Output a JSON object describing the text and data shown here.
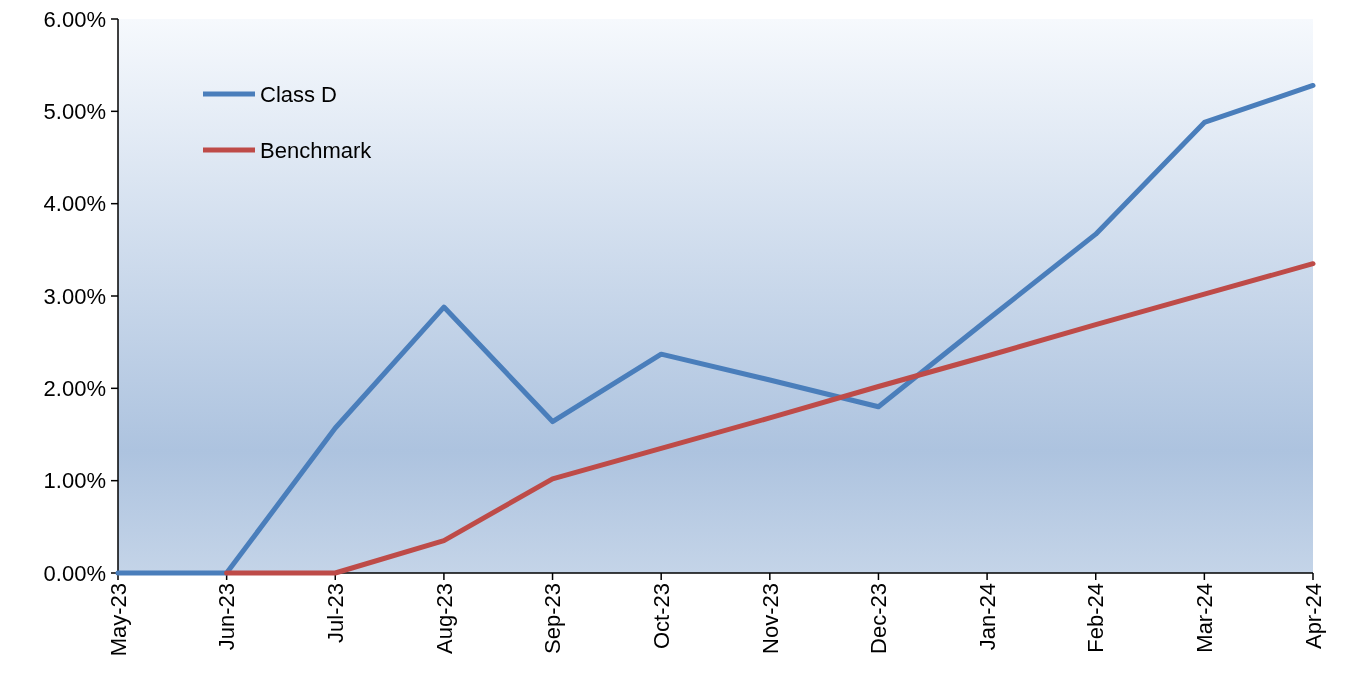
{
  "chart_data": {
    "type": "line",
    "categories": [
      "May-23",
      "Jun-23",
      "Jul-23",
      "Aug-23",
      "Sep-23",
      "Oct-23",
      "Nov-23",
      "Dec-23",
      "Jan-24",
      "Feb-24",
      "Mar-24",
      "Apr-24"
    ],
    "series": [
      {
        "name": "Class D",
        "color": "#4a7ebb",
        "values": [
          0,
          0,
          1.57,
          2.88,
          1.64,
          2.37,
          2.09,
          1.8,
          2.74,
          3.67,
          4.88,
          5.28
        ]
      },
      {
        "name": "Benchmark",
        "color": "#be4b48",
        "values": [
          null,
          0,
          0,
          0.35,
          1.02,
          1.35,
          1.68,
          2.02,
          2.35,
          2.69,
          3.02,
          3.35
        ]
      }
    ],
    "ylim": [
      0,
      6
    ],
    "yticks": [
      {
        "value": 0,
        "label": "0.00%"
      },
      {
        "value": 1,
        "label": "1.00%"
      },
      {
        "value": 2,
        "label": "2.00%"
      },
      {
        "value": 3,
        "label": "3.00%"
      },
      {
        "value": 4,
        "label": "4.00%"
      },
      {
        "value": 5,
        "label": "5.00%"
      },
      {
        "value": 6,
        "label": "6.00%"
      }
    ],
    "legend": "top left",
    "grid": false,
    "marker": "none",
    "line_style": "solid"
  }
}
